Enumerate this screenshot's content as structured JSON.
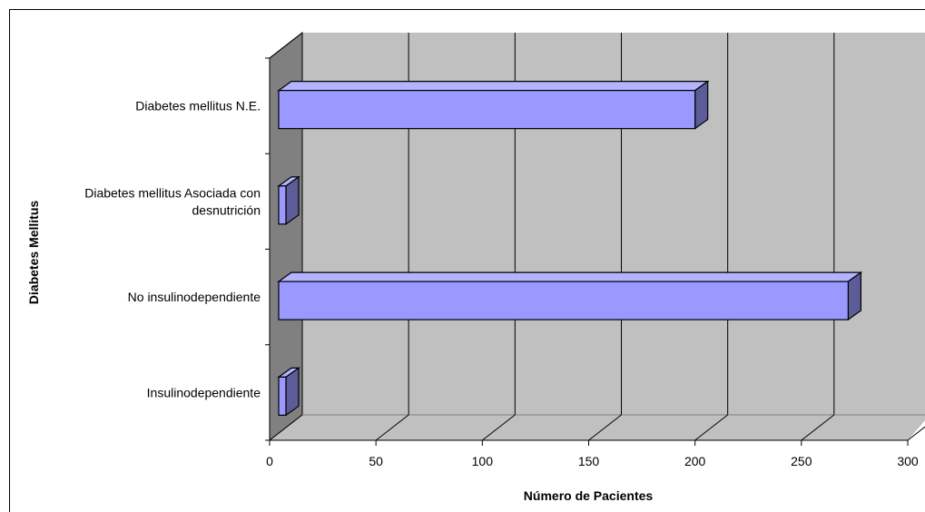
{
  "chart_data": {
    "type": "bar",
    "orientation": "horizontal",
    "three_d": true,
    "categories": [
      [
        "Insulinodependiente"
      ],
      [
        "No insulinodependiente"
      ],
      [
        "Diabetes mellitus Asociada con",
        "desnutrición"
      ],
      [
        "Diabetes mellitus N.E."
      ]
    ],
    "values": [
      4,
      272,
      2,
      200
    ],
    "xlabel": "Número de Pacientes",
    "ylabel": "Diabetes Mellitus",
    "xlim": [
      0,
      300
    ],
    "xticks": [
      "0",
      "50",
      "100",
      "150",
      "200",
      "250",
      "300"
    ],
    "grid": true,
    "legend": "none",
    "colors": {
      "bar_front": "#9999ff",
      "bar_top": "#b3b3ff",
      "bar_side": "#5c5c99",
      "wall_back": "#c0c0c0",
      "wall_side": "#808080",
      "floor": "#c0c0c0",
      "outline": "#000000"
    }
  }
}
